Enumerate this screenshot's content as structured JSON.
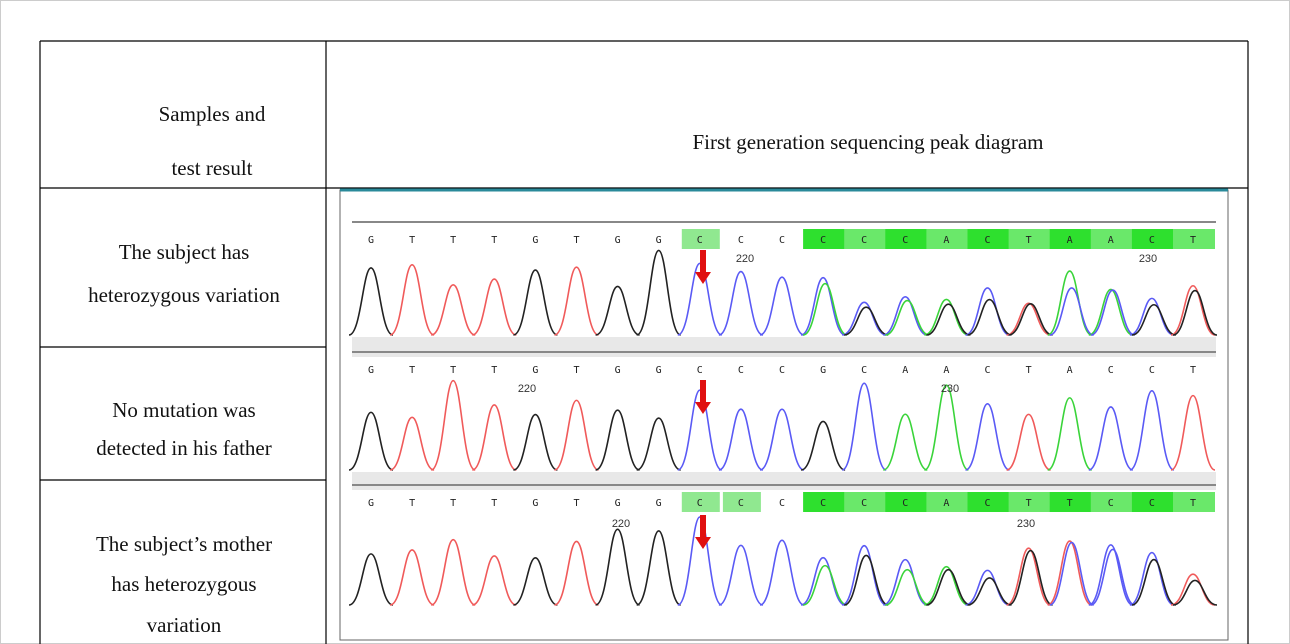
{
  "table": {
    "header": {
      "left": [
        "Samples and",
        "test result"
      ],
      "right": "First generation sequencing peak diagram"
    },
    "rows": [
      {
        "label": [
          "The subject has",
          "heterozygous variation"
        ],
        "bases": [
          "G",
          "T",
          "T",
          "T",
          "G",
          "T",
          "G",
          "G",
          "C",
          "C",
          "C",
          "C",
          "C",
          "C",
          "A",
          "C",
          "T",
          "A",
          "A",
          "C",
          "T"
        ],
        "positions": [
          "220",
          "230"
        ],
        "highlight_light": [
          8
        ],
        "highlight": [
          11,
          12,
          13,
          14,
          15,
          16,
          17,
          18,
          19,
          20
        ],
        "red_bases": [
          11,
          13,
          18
        ]
      },
      {
        "label": [
          "No mutation was",
          "detected in his father"
        ],
        "bases": [
          "G",
          "T",
          "T",
          "T",
          "G",
          "T",
          "G",
          "G",
          "C",
          "C",
          "C",
          "G",
          "C",
          "A",
          "A",
          "C",
          "T",
          "A",
          "C",
          "C",
          "T"
        ],
        "positions": [
          "220",
          "230"
        ],
        "highlight_light": [],
        "highlight": [],
        "red_bases": []
      },
      {
        "label": [
          "The subject’s mother",
          "has heterozygous",
          "variation"
        ],
        "bases": [
          "G",
          "T",
          "T",
          "T",
          "G",
          "T",
          "G",
          "G",
          "C",
          "C",
          "C",
          "C",
          "C",
          "C",
          "A",
          "C",
          "T",
          "T",
          "C",
          "C",
          "T"
        ],
        "positions": [
          "220",
          "230"
        ],
        "highlight_light": [
          8,
          9
        ],
        "highlight": [
          11,
          12,
          13,
          14,
          15,
          16,
          17,
          18,
          19,
          20
        ],
        "red_bases": [
          11,
          13,
          17
        ]
      }
    ]
  }
}
